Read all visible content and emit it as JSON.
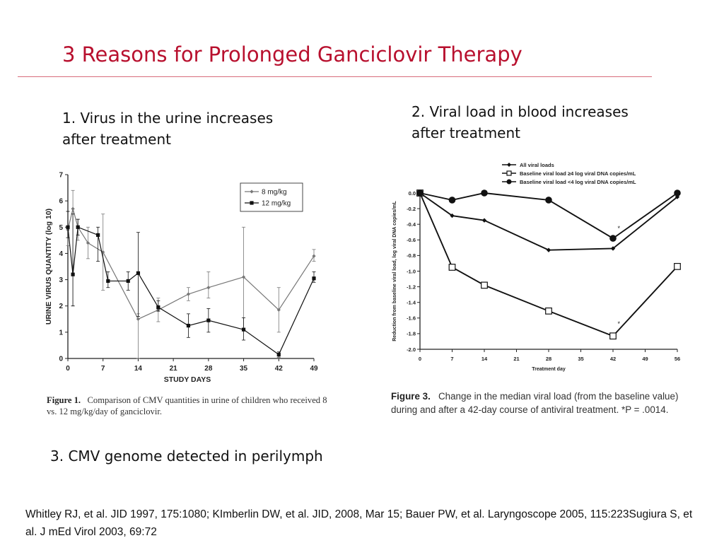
{
  "slide": {
    "title": "3 Reasons for Prolonged Ganciclovir Therapy",
    "point1": "1. Virus in the urine increases after treatment",
    "point2": "2. Viral load in blood increases after treatment",
    "point3": "3. CMV genome detected in perilymph",
    "references": "Whitley RJ, et al. JID 1997, 175:1080;  KImberlin DW, et al. JID, 2008, Mar 15;  Bauer PW, et al. Laryngoscope 2005, 115:223Sugiura S, et al. J mEd Virol 2003, 69:72"
  },
  "captions": {
    "fig1_label": "Figure 1.",
    "fig1_text": "Comparison of CMV quantities in urine of children who received 8 vs. 12 mg/kg/day of ganciclovir.",
    "fig3_label": "Figure 3.",
    "fig3_text": "Change in the median viral load (from the baseline value) during and after a 42-day course of antiviral treatment. *P = .0014."
  },
  "colors": {
    "title": "#b8102e",
    "rule": "#d86b7c",
    "series_gray": "#777777",
    "series_black": "#111111"
  },
  "chart_data": [
    {
      "type": "line",
      "title": "",
      "xlabel": "STUDY DAYS",
      "ylabel": "URINE VIRUS QUANTITY (log 10)",
      "xlim": [
        0,
        49
      ],
      "ylim": [
        0,
        7
      ],
      "xticks": [
        0,
        7,
        14,
        21,
        28,
        35,
        42,
        49
      ],
      "yticks": [
        0,
        1,
        2,
        3,
        4,
        5,
        6,
        7
      ],
      "legend_position": "top-right",
      "series": [
        {
          "name": "8 mg/kg",
          "marker": "diamond",
          "color": "#777777",
          "x": [
            0,
            1,
            2,
            4,
            7,
            14,
            18,
            24,
            28,
            35,
            42,
            49
          ],
          "y": [
            4.9,
            5.7,
            5.0,
            4.4,
            4.05,
            1.5,
            1.85,
            2.45,
            2.7,
            3.1,
            1.85,
            3.9
          ],
          "err_low": [
            4.3,
            2.0,
            4.5,
            3.8,
            2.6,
            0.0,
            1.4,
            2.2,
            2.3,
            1.1,
            1.0,
            3.7
          ],
          "err_high": [
            5.6,
            6.4,
            5.3,
            5.0,
            5.5,
            1.7,
            2.3,
            2.7,
            3.3,
            5.0,
            2.7,
            4.15
          ]
        },
        {
          "name": "12 mg/kg",
          "marker": "square",
          "color": "#111111",
          "x": [
            0,
            1,
            2,
            6,
            8,
            12,
            14,
            18,
            24,
            28,
            35,
            42,
            49
          ],
          "y": [
            5.0,
            3.2,
            5.0,
            4.7,
            2.95,
            2.95,
            3.25,
            1.95,
            1.25,
            1.45,
            1.1,
            0.15,
            3.05
          ],
          "err_low": [
            4.6,
            2.0,
            4.7,
            3.7,
            2.7,
            2.6,
            1.6,
            1.8,
            0.8,
            1.0,
            0.7,
            0.05,
            2.9
          ],
          "err_high": [
            5.6,
            5.5,
            5.3,
            5.0,
            3.3,
            3.3,
            4.8,
            2.2,
            1.7,
            1.9,
            1.55,
            0.25,
            3.3
          ]
        }
      ]
    },
    {
      "type": "line",
      "title": "",
      "xlabel": "Treatment day",
      "ylabel": "Reduction from baseline viral load, log viral DNA copies/mL",
      "xlim": [
        0,
        56
      ],
      "ylim": [
        -2.0,
        0.0
      ],
      "xticks": [
        0,
        7,
        14,
        21,
        28,
        35,
        42,
        49,
        56
      ],
      "yticks": [
        "0.0",
        "-0.2",
        "-0.4",
        "-0.6",
        "-0.8",
        "-1.0",
        "-1.2",
        "-1.4",
        "-1.6",
        "-1.8",
        "-2.0"
      ],
      "legend_position": "top",
      "annotations": [
        {
          "text": "*",
          "x": 43,
          "y": -0.48
        },
        {
          "text": "*",
          "x": 43,
          "y": -1.7
        }
      ],
      "series": [
        {
          "name": "All viral loads",
          "marker": "diamond",
          "x": [
            0,
            7,
            14,
            28,
            42,
            56
          ],
          "y": [
            0.0,
            -0.29,
            -0.35,
            -0.73,
            -0.71,
            -0.05
          ]
        },
        {
          "name": "Baseline viral load ≥4 log viral DNA copies/mL",
          "marker": "open-square",
          "x": [
            0,
            7,
            14,
            28,
            42,
            56
          ],
          "y": [
            0.0,
            -0.95,
            -1.18,
            -1.51,
            -1.83,
            -0.94
          ]
        },
        {
          "name": "Baseline viral load <4 log viral DNA copies/mL",
          "marker": "circle",
          "x": [
            0,
            7,
            14,
            28,
            42,
            56
          ],
          "y": [
            0.0,
            -0.09,
            0.0,
            -0.09,
            -0.58,
            0.0
          ]
        }
      ]
    }
  ]
}
